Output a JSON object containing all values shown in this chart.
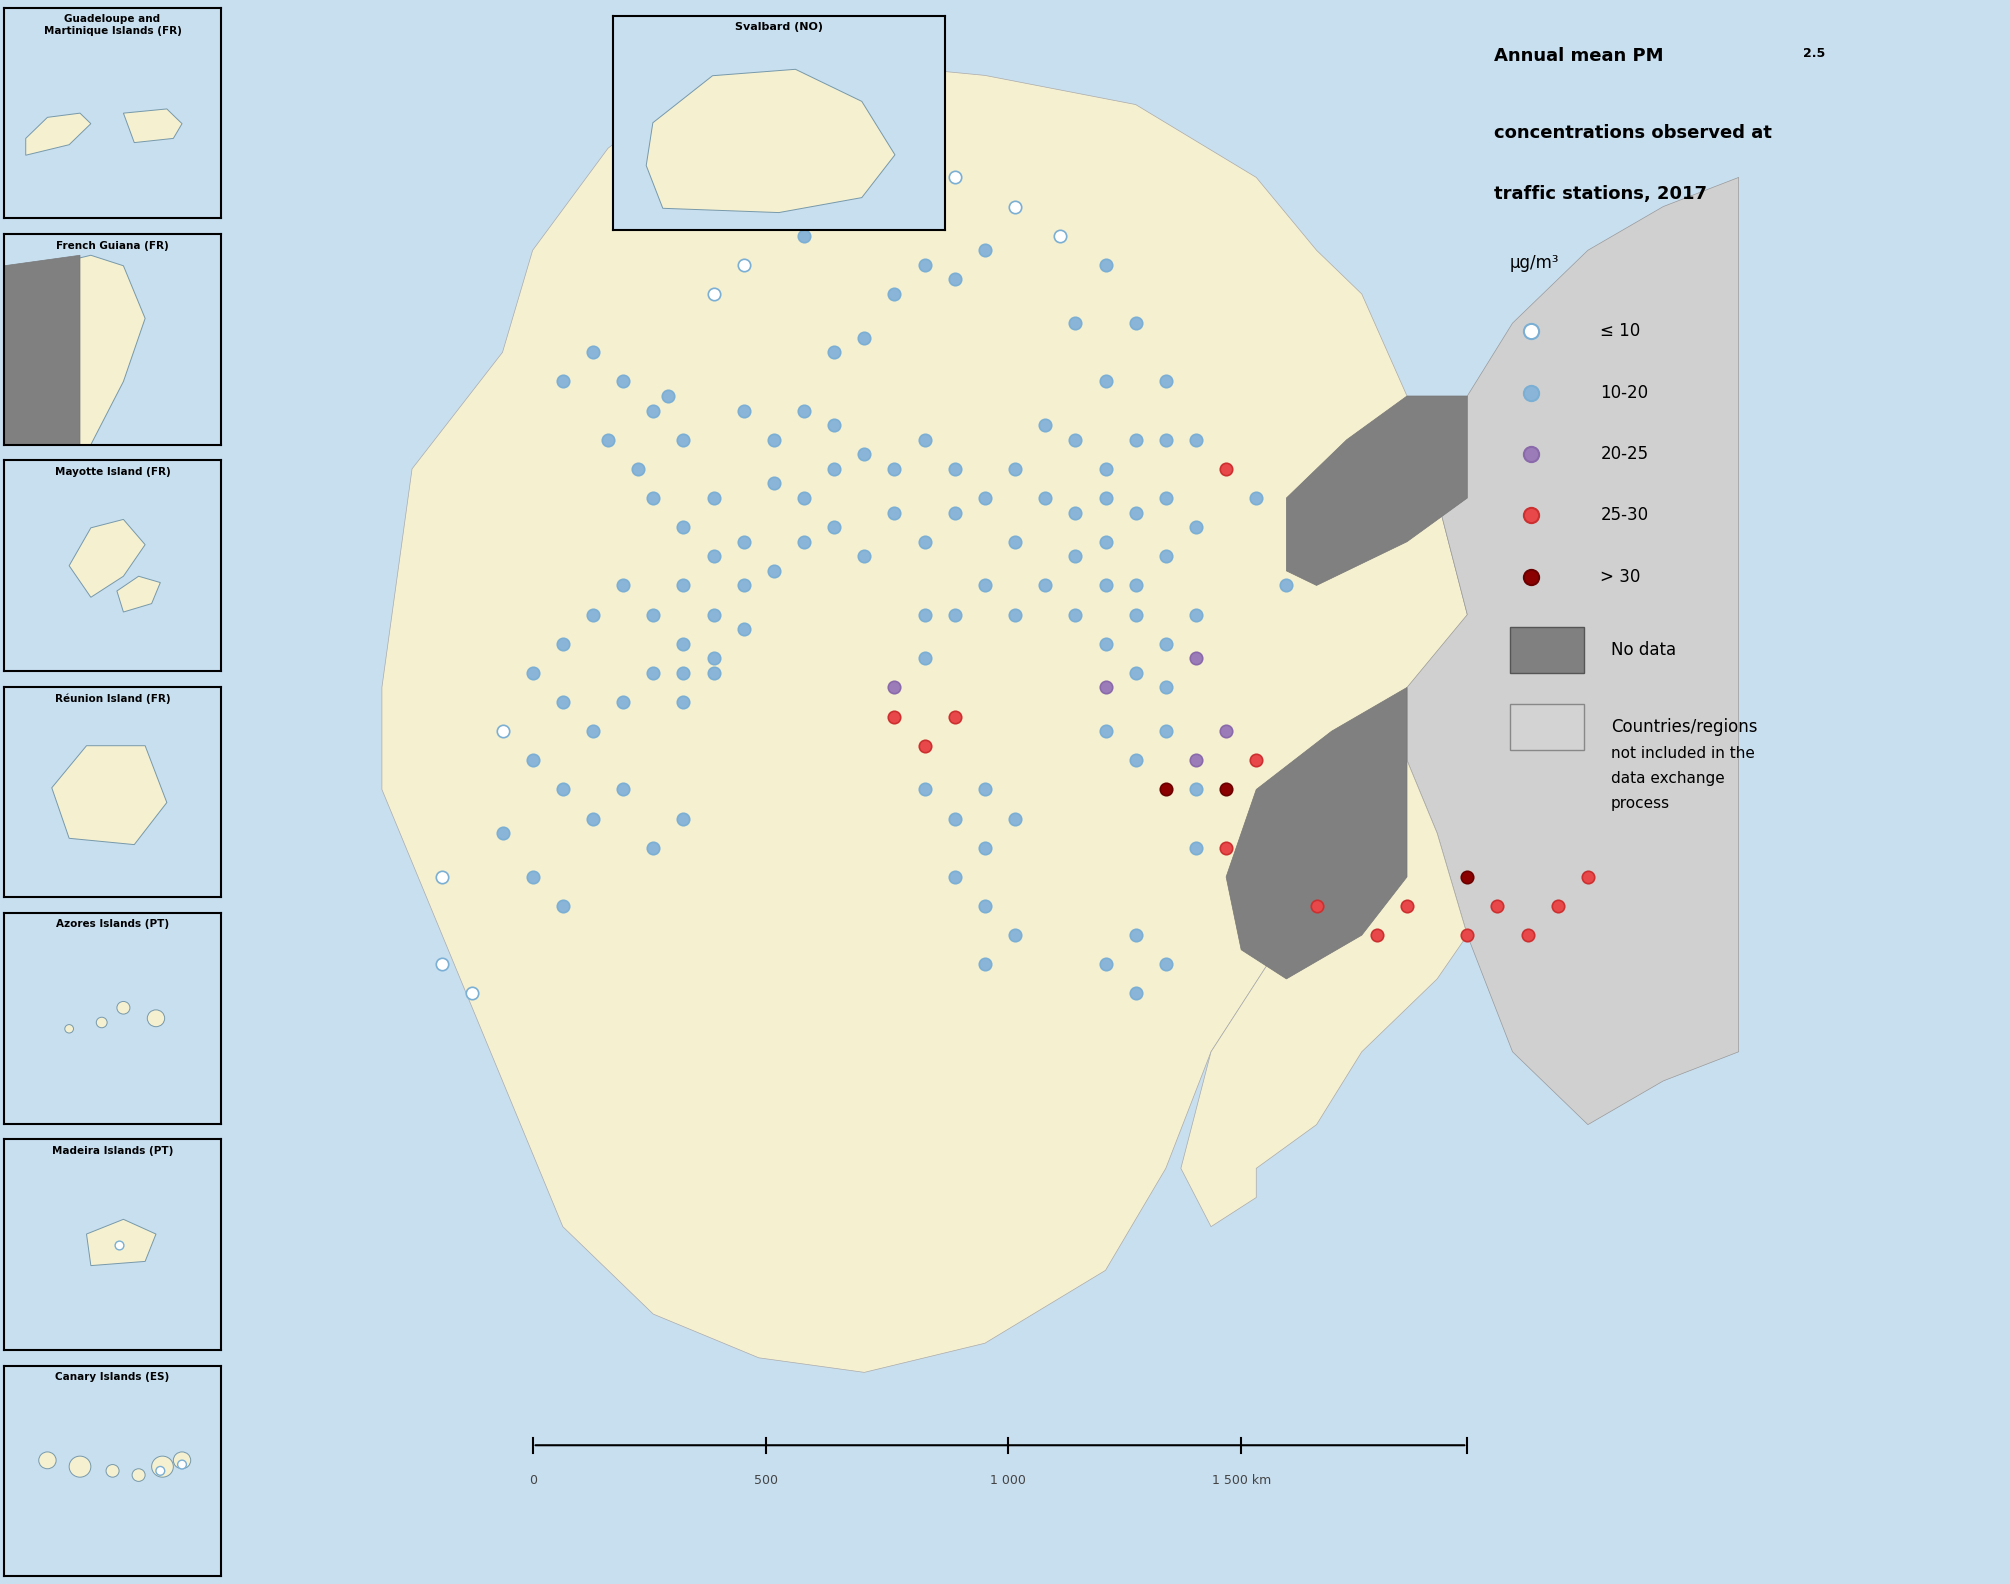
{
  "title_line1": "Annual mean PM",
  "title_pm_sub": "2.5",
  "title_line2": "concentrations observed at",
  "title_line3": "traffic stations, 2017",
  "units": "μg/m³",
  "legend_items": [
    {
      "label": "≤ 10",
      "color": "#ffffff",
      "edge": "#7bafd4",
      "filled": false
    },
    {
      "label": "10-20",
      "color": "#8ab4d8",
      "edge": "#7bafd4",
      "filled": true
    },
    {
      "label": "20-25",
      "color": "#9b7cb8",
      "edge": "#8a6aaa",
      "filled": true
    },
    {
      "label": "25-30",
      "color": "#e8484a",
      "edge": "#cc3030",
      "filled": true
    },
    {
      "label": "> 30",
      "color": "#8b0000",
      "edge": "#6b0000",
      "filled": true
    }
  ],
  "no_data_color": "#808080",
  "not_included_color": "#d3d3d3",
  "background_map_color": "#b8d8e8",
  "land_included_color": "#f5f0d0",
  "land_nodata_color": "#909090",
  "land_notincluded_color": "#d0d0d0",
  "ocean_color": "#c8dff0",
  "legend_bg": "#f0f0f0",
  "box_bg": "#c8dff0",
  "inset_labels": [
    "Guadeloupe and\nMartinique Islands (FR)",
    "French Guiana (FR)",
    "Mayotte Island (FR)",
    "Réunion Island (FR)",
    "Azores Islands (PT)",
    "Madeira Islands (PT)",
    "Canary Islands (ES)"
  ],
  "svalbard_label": "Svalbard (NO)",
  "scale_label": "0     500   1 000   1 500 km",
  "marker_size": 80,
  "marker_size_small": 60
}
